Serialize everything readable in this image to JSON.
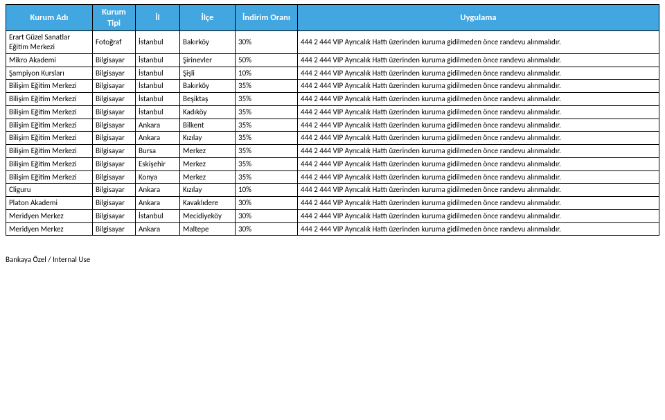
{
  "columns": [
    "Kurum Adı",
    "Kurum Tipi",
    "İl",
    "İlçe",
    "İndirim Oranı",
    "Uygulama"
  ],
  "note_text": "444 2 444 VIP Ayrıcalık Hattı üzerinden kuruma gidilmeden önce randevu alınmalıdır.",
  "rows": [
    {
      "kurum": "Erart Güzel Sanatlar Eğitim Merkezi",
      "tip": "Fotoğraf",
      "il": "İstanbul",
      "ilce": "Bakırköy",
      "oran": "30%"
    },
    {
      "kurum": "Mikro Akademi",
      "tip": "Bilgisayar",
      "il": "İstanbul",
      "ilce": "Şirinevler",
      "oran": "50%"
    },
    {
      "kurum": "Şampiyon Kursları",
      "tip": "Bilgisayar",
      "il": "İstanbul",
      "ilce": "Şişli",
      "oran": "10%"
    },
    {
      "kurum": "Bilişim Eğitim Merkezi",
      "tip": "Bilgisayar",
      "il": "İstanbul",
      "ilce": "Bakırköy",
      "oran": "35%"
    },
    {
      "kurum": "Bilişim Eğitim Merkezi",
      "tip": "Bilgisayar",
      "il": "İstanbul",
      "ilce": "Beşiktaş",
      "oran": "35%"
    },
    {
      "kurum": "Bilişim Eğitim Merkezi",
      "tip": "Bilgisayar",
      "il": "İstanbul",
      "ilce": "Kadıköy",
      "oran": "35%"
    },
    {
      "kurum": "Bilişim Eğitim Merkezi",
      "tip": "Bilgisayar",
      "il": "Ankara",
      "ilce": "Bilkent",
      "oran": "35%"
    },
    {
      "kurum": "Bilişim Eğitim Merkezi",
      "tip": "Bilgisayar",
      "il": "Ankara",
      "ilce": "Kızılay",
      "oran": "35%"
    },
    {
      "kurum": "Bilişim Eğitim Merkezi",
      "tip": "Bilgisayar",
      "il": "Bursa",
      "ilce": "Merkez",
      "oran": "35%"
    },
    {
      "kurum": "Bilişim Eğitim Merkezi",
      "tip": "Bilgisayar",
      "il": "Eskişehir",
      "ilce": "Merkez",
      "oran": "35%"
    },
    {
      "kurum": "Bilişim Eğitim Merkezi",
      "tip": "Bilgisayar",
      "il": "Konya",
      "ilce": "Merkez",
      "oran": "35%"
    },
    {
      "kurum": "Cliguru",
      "tip": "Bilgisayar",
      "il": "Ankara",
      "ilce": "Kızılay",
      "oran": "10%"
    },
    {
      "kurum": "Platon Akademi",
      "tip": "Bilgisayar",
      "il": "Ankara",
      "ilce": "Kavaklıdere",
      "oran": "30%"
    },
    {
      "kurum": "Meridyen Merkez",
      "tip": "Bilgisayar",
      "il": "İstanbul",
      "ilce": "Mecidiyeköy",
      "oran": "30%"
    },
    {
      "kurum": "Meridyen Merkez",
      "tip": "Bilgisayar",
      "il": "Ankara",
      "ilce": "Maltepe",
      "oran": "30%"
    }
  ],
  "footer": "Bankaya Özel /  Internal Use"
}
